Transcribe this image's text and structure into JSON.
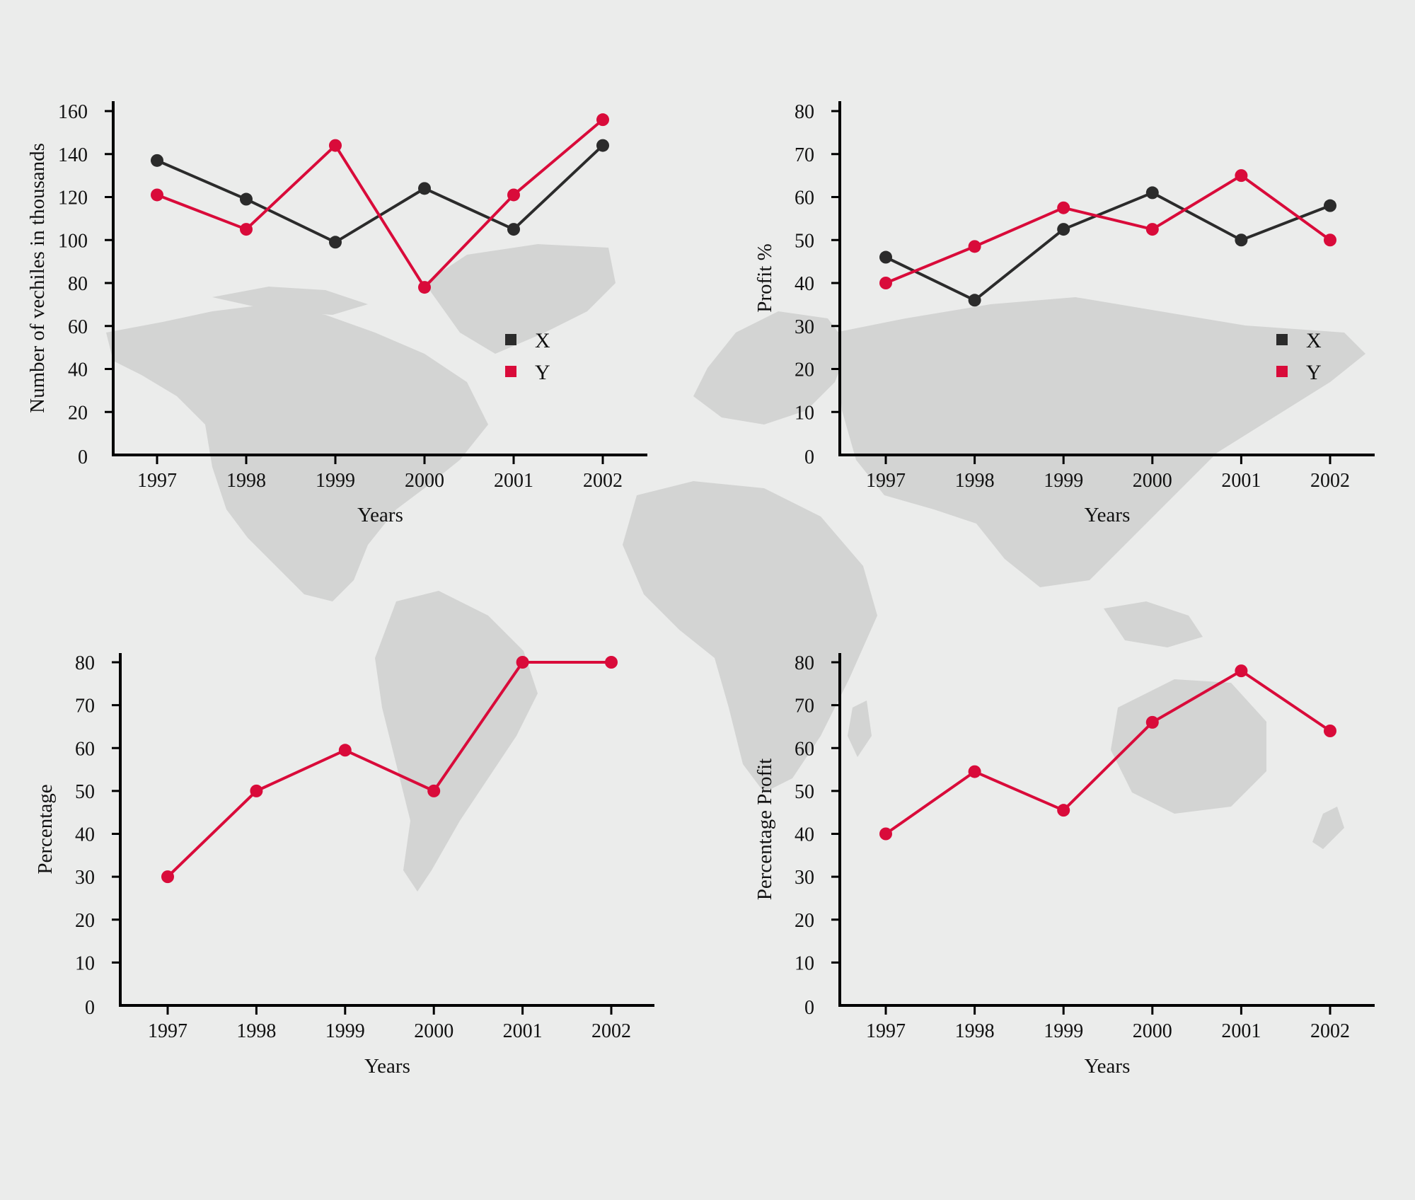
{
  "colors": {
    "background": "#ebeceb",
    "map": "#d3d4d3",
    "series_x": "#2b2b2b",
    "series_y": "#d90b3a",
    "axis": "#000000"
  },
  "background_decoration": "world-map",
  "chart_data": [
    {
      "type": "line",
      "title": "",
      "xlabel": "Years",
      "ylabel": "Number of vechiles in thousands",
      "x": [
        "1997",
        "1998",
        "1999",
        "2000",
        "2001",
        "2002"
      ],
      "ylim": [
        0,
        160
      ],
      "yticks": [
        0,
        20,
        40,
        60,
        80,
        100,
        120,
        140,
        160
      ],
      "legend": {
        "position": "middle-right",
        "entries": [
          "X",
          "Y"
        ]
      },
      "grid": false,
      "series": [
        {
          "name": "X",
          "color": "#2b2b2b",
          "values": [
            137,
            119,
            99,
            124,
            105,
            144
          ]
        },
        {
          "name": "Y",
          "color": "#d90b3a",
          "values": [
            121,
            105,
            144,
            78,
            121,
            156
          ]
        }
      ]
    },
    {
      "type": "line",
      "title": "",
      "xlabel": "Years",
      "ylabel": "Profit %",
      "x": [
        "1997",
        "1998",
        "1999",
        "2000",
        "2001",
        "2002"
      ],
      "ylim": [
        0,
        80
      ],
      "yticks": [
        0,
        10,
        20,
        30,
        40,
        50,
        60,
        70,
        80
      ],
      "legend": {
        "position": "middle-right",
        "entries": [
          "X",
          "Y"
        ]
      },
      "grid": false,
      "series": [
        {
          "name": "X",
          "color": "#2b2b2b",
          "values": [
            46,
            36,
            52.5,
            61,
            50,
            58
          ]
        },
        {
          "name": "Y",
          "color": "#d90b3a",
          "values": [
            40,
            48.5,
            57.5,
            52.5,
            65,
            50
          ]
        }
      ]
    },
    {
      "type": "line",
      "title": "",
      "xlabel": "Years",
      "ylabel": "Percentage",
      "x": [
        "1997",
        "1998",
        "1999",
        "2000",
        "2001",
        "2002"
      ],
      "ylim": [
        0,
        80
      ],
      "yticks": [
        0,
        10,
        20,
        30,
        40,
        50,
        60,
        70,
        80
      ],
      "grid": false,
      "series": [
        {
          "color": "#d90b3a",
          "values": [
            30,
            50,
            59.5,
            50,
            80,
            80
          ]
        }
      ]
    },
    {
      "type": "line",
      "title": "",
      "xlabel": "Years",
      "ylabel": "Percentage Profit",
      "x": [
        "1997",
        "1998",
        "1999",
        "2000",
        "2001",
        "2002"
      ],
      "ylim": [
        0,
        80
      ],
      "yticks": [
        0,
        10,
        20,
        30,
        40,
        50,
        60,
        70,
        80
      ],
      "grid": false,
      "series": [
        {
          "color": "#d90b3a",
          "values": [
            40,
            54.5,
            45.5,
            66,
            78,
            64
          ]
        }
      ]
    }
  ]
}
